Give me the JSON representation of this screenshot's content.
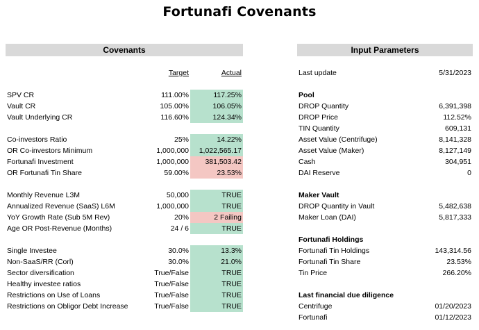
{
  "title": "Fortunafi Covenants",
  "covenants": {
    "header": "Covenants",
    "target_col": "Target",
    "actual_col": "Actual",
    "groups": [
      [
        {
          "label": "SPV CR",
          "target": "111.00%",
          "actual": "117.25%",
          "status": "good"
        },
        {
          "label": "Vault CR",
          "target": "105.00%",
          "actual": "106.05%",
          "status": "good"
        },
        {
          "label": "Vault Underlying CR",
          "target": "116.60%",
          "actual": "124.34%",
          "status": "good"
        }
      ],
      [
        {
          "label": "Co-investors Ratio",
          "target": "25%",
          "actual": "14.22%",
          "status": "good"
        },
        {
          "label": "OR Co-investors Minimum",
          "target": "1,000,000",
          "actual": "1,022,565.17",
          "status": "good"
        },
        {
          "label": "Fortunafi Investment",
          "target": "1,000,000",
          "actual": "381,503.42",
          "status": "bad"
        },
        {
          "label": "OR Fortunafi Tin Share",
          "target": "59.00%",
          "actual": "23.53%",
          "status": "bad"
        }
      ],
      [
        {
          "label": "Monthly Revenue L3M",
          "target": "50,000",
          "actual": "TRUE",
          "status": "good"
        },
        {
          "label": "Annualized Revenue (SaaS) L6M",
          "target": "1,000,000",
          "actual": "TRUE",
          "status": "good"
        },
        {
          "label": "YoY Growth Rate (Sub 5M Rev)",
          "target": "20%",
          "actual": "2 Failing",
          "status": "bad"
        },
        {
          "label": "Age OR Post-Revenue (Months)",
          "target": "24 / 6",
          "actual": "TRUE",
          "status": "good"
        }
      ],
      [
        {
          "label": "Single Investee",
          "target": "30.0%",
          "actual": "13.3%",
          "status": "good"
        },
        {
          "label": "Non-SaaS/RR (Corl)",
          "target": "30.0%",
          "actual": "21.0%",
          "status": "good"
        },
        {
          "label": "Sector diversification",
          "target": "True/False",
          "actual": "TRUE",
          "status": "good"
        },
        {
          "label": "Healthy investee ratios",
          "target": "True/False",
          "actual": "TRUE",
          "status": "good"
        },
        {
          "label": "Restrictions on Use of Loans",
          "target": "True/False",
          "actual": "TRUE",
          "status": "good"
        },
        {
          "label": "Restrictions on Obligor Debt Increase",
          "target": "True/False",
          "actual": "TRUE",
          "status": "good"
        }
      ]
    ]
  },
  "parameters": {
    "header": "Input Parameters",
    "last_update_label": "Last update",
    "last_update_value": "5/31/2023",
    "sections": [
      {
        "title": "Pool",
        "rows": [
          {
            "label": "DROP Quantity",
            "value": "6,391,398"
          },
          {
            "label": "DROP Price",
            "value": "112.52%"
          },
          {
            "label": "TIN Quantity",
            "value": "609,131"
          },
          {
            "label": "Asset Value (Centrifuge)",
            "value": "8,141,328"
          },
          {
            "label": "Asset Value (Maker)",
            "value": "8,127,149"
          },
          {
            "label": "Cash",
            "value": "304,951"
          },
          {
            "label": "DAI Reserve",
            "value": "0"
          }
        ]
      },
      {
        "title": "Maker Vault",
        "rows": [
          {
            "label": "DROP Quantity in Vault",
            "value": "5,482,638"
          },
          {
            "label": "Maker Loan (DAI)",
            "value": "5,817,333"
          }
        ]
      },
      {
        "title": "Fortunafi Holdings",
        "rows": [
          {
            "label": "Fortunafi Tin Holdings",
            "value": "143,314.56"
          },
          {
            "label": "Fortunafi Tin Share",
            "value": "23.53%"
          },
          {
            "label": "Tin Price",
            "value": "266.20%"
          }
        ]
      },
      {
        "title": "Last financial due diligence",
        "rows": [
          {
            "label": "Centrifuge",
            "value": "01/20/2023"
          },
          {
            "label": "Fortunafi",
            "value": "01/12/2023"
          }
        ]
      }
    ]
  }
}
